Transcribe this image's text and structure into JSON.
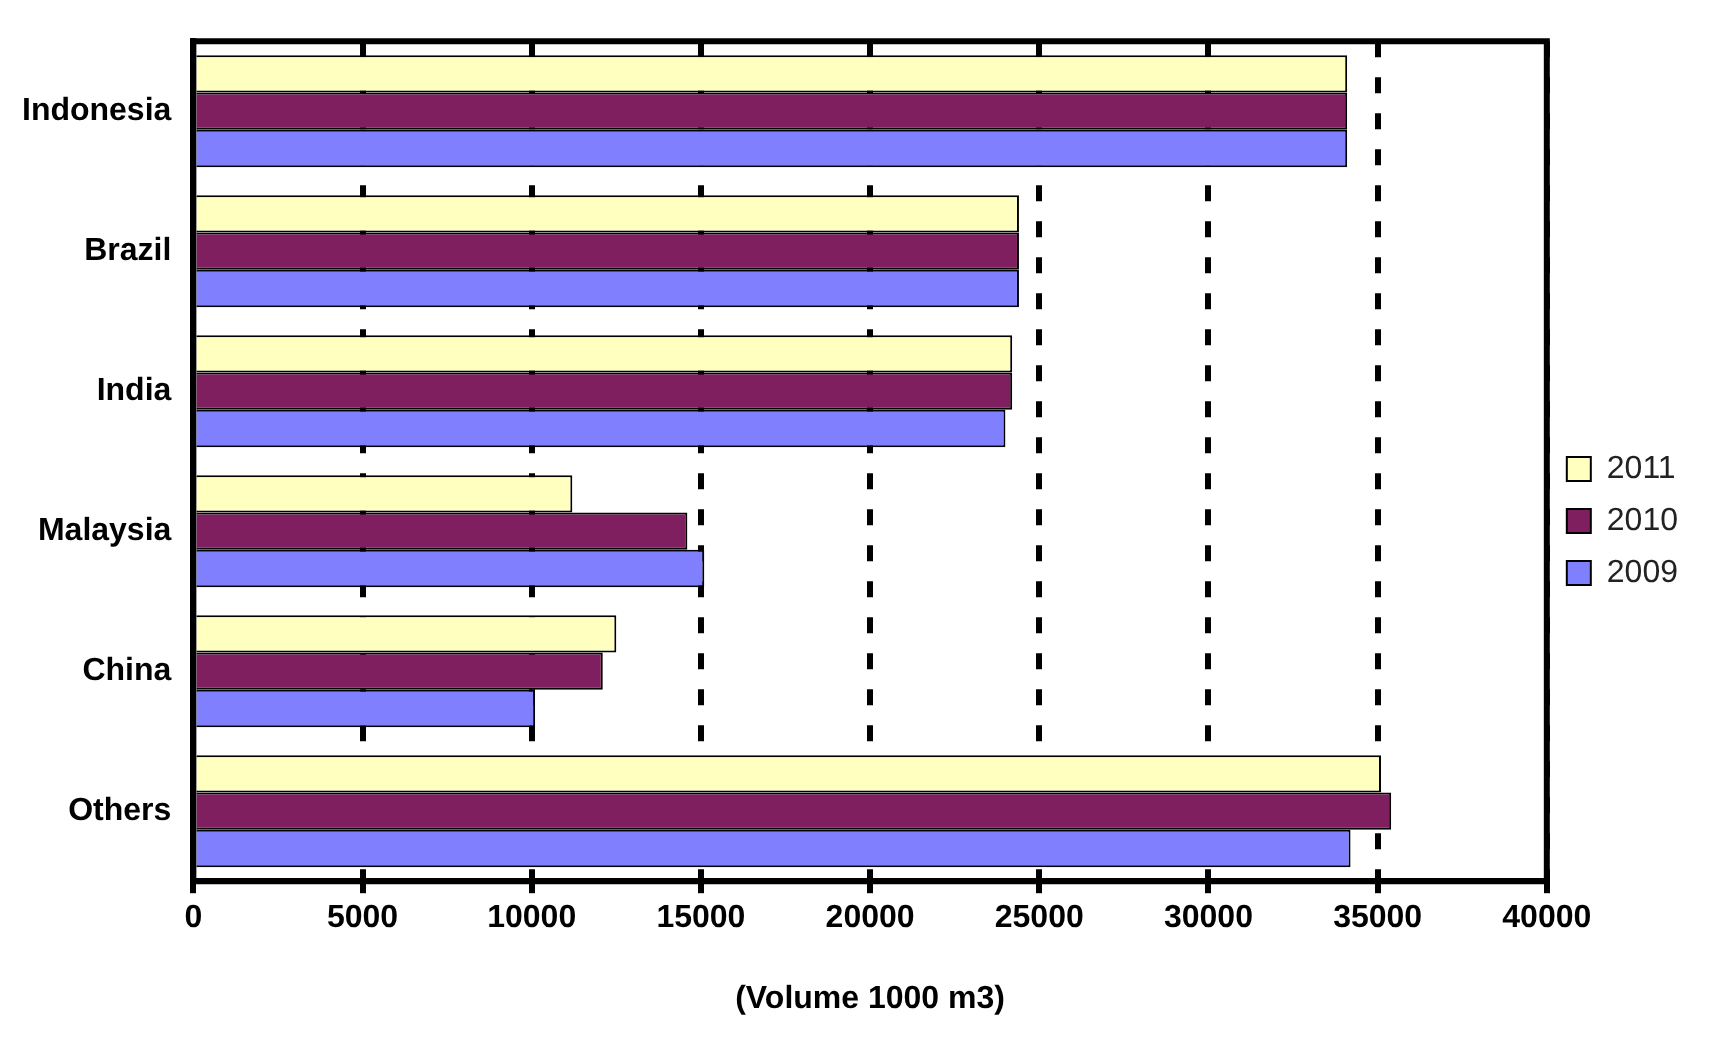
{
  "chart_data": {
    "type": "bar",
    "orientation": "horizontal",
    "xlabel": "(Volume 1000 m3)",
    "categories": [
      "Indonesia",
      "Brazil",
      "India",
      "Malaysia",
      "China",
      "Others"
    ],
    "series": [
      {
        "name": "2011",
        "color": "#ffffc0",
        "values": [
          34100,
          24400,
          24200,
          11200,
          12500,
          35100
        ]
      },
      {
        "name": "2010",
        "color": "#7f1f5f",
        "values": [
          34100,
          24400,
          24200,
          14600,
          12100,
          35400
        ]
      },
      {
        "name": "2009",
        "color": "#8080ff",
        "values": [
          34100,
          24400,
          24000,
          15100,
          10100,
          34200
        ]
      }
    ],
    "xlim": [
      0,
      40000
    ],
    "xticks": [
      0,
      5000,
      10000,
      15000,
      20000,
      25000,
      30000,
      35000,
      40000
    ],
    "grid": "x",
    "legend": "right"
  }
}
